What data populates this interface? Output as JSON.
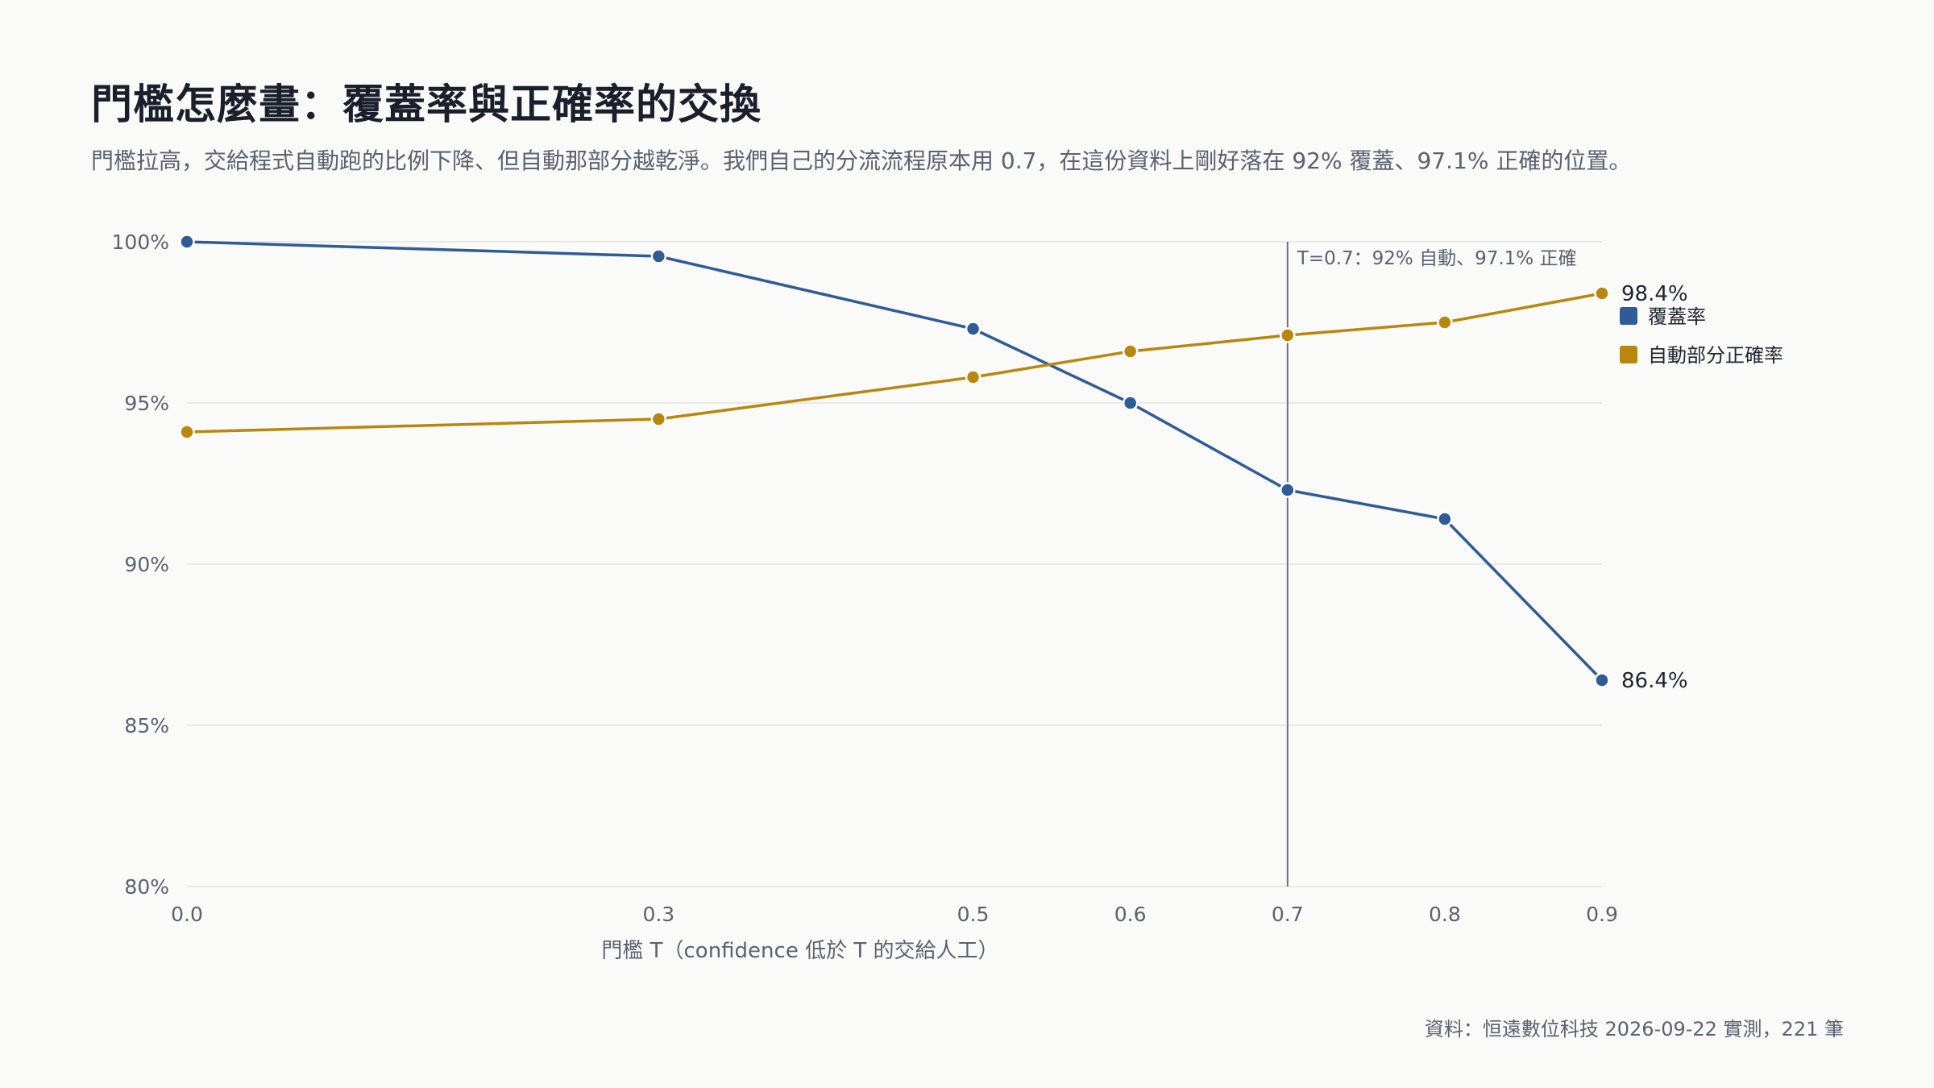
{
  "header": {
    "title": "門檻怎麼畫：覆蓋率與正確率的交換",
    "subtitle": "門檻拉高，交給程式自動跑的比例下降、但自動那部分越乾淨。我們自己的分流流程原本用 0.7，在這份資料上剛好落在 92% 覆蓋、97.1% 正確的位置。"
  },
  "footer": {
    "source": "資料：恒遠數位科技 2026-09-22 實測，221 筆"
  },
  "colors": {
    "coverage": "#2f5b96",
    "accuracy": "#b8870f",
    "refline": "#6b7080",
    "grid": "#e3e3e0"
  },
  "chart_data": {
    "type": "line",
    "xlabel": "門檻 T（confidence 低於 T 的交給人工）",
    "ylabel": "",
    "x": [
      0.0,
      0.3,
      0.5,
      0.6,
      0.7,
      0.8,
      0.9
    ],
    "x_tick_labels": [
      "0.0",
      "0.3",
      "0.5",
      "0.6",
      "0.7",
      "0.8",
      "0.9"
    ],
    "xlim": [
      0.0,
      0.9
    ],
    "ylim": [
      80,
      100
    ],
    "y_ticks": [
      80,
      85,
      90,
      95,
      100
    ],
    "y_tick_labels": [
      "80%",
      "85%",
      "90%",
      "95%",
      "100%"
    ],
    "grid": true,
    "legend_position": "right",
    "series": [
      {
        "name": "覆蓋率",
        "color": "#2f5b96",
        "values": [
          100.0,
          99.55,
          97.3,
          95.0,
          92.3,
          91.4,
          86.4
        ],
        "end_label": "86.4%"
      },
      {
        "name": "自動部分正確率",
        "color": "#b8870f",
        "values": [
          94.1,
          94.5,
          95.8,
          96.6,
          97.1,
          97.5,
          98.4
        ],
        "end_label": "98.4%"
      }
    ],
    "reference_line": {
      "x": 0.7,
      "label": "T=0.7：92% 自動、97.1% 正確"
    }
  }
}
